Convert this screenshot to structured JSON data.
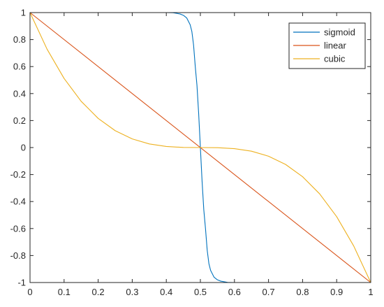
{
  "chart_data": {
    "type": "line",
    "title": "",
    "xlabel": "",
    "ylabel": "",
    "xlim": [
      0,
      1
    ],
    "ylim": [
      -1,
      1
    ],
    "grid": false,
    "legend_position": "top-right",
    "xticks": [
      0,
      0.1,
      0.2,
      0.3,
      0.4,
      0.5,
      0.6,
      0.7,
      0.8,
      0.9,
      1
    ],
    "xtick_labels": [
      "0",
      "0.1",
      "0.2",
      "0.3",
      "0.4",
      "0.5",
      "0.6",
      "0.7",
      "0.8",
      "0.9",
      "1"
    ],
    "yticks": [
      -1,
      -0.8,
      -0.6,
      -0.4,
      -0.2,
      0,
      0.2,
      0.4,
      0.6,
      0.8,
      1
    ],
    "ytick_labels": [
      "-1",
      "-0.8",
      "-0.6",
      "-0.4",
      "-0.2",
      "0",
      "0.2",
      "0.4",
      "0.6",
      "0.8",
      "1"
    ],
    "series": [
      {
        "name": "sigmoid",
        "color": "#0072BD",
        "x": [
          0,
          0.4,
          0.42,
          0.44,
          0.45,
          0.46,
          0.47,
          0.475,
          0.48,
          0.485,
          0.49,
          0.495,
          0.5,
          0.505,
          0.51,
          0.515,
          0.52,
          0.525,
          0.53,
          0.54,
          0.55,
          0.56,
          0.58,
          0.6,
          1
        ],
        "y": [
          1,
          1,
          0.999,
          0.99,
          0.98,
          0.96,
          0.91,
          0.86,
          0.76,
          0.6,
          0.46,
          0.25,
          0,
          -0.25,
          -0.46,
          -0.6,
          -0.76,
          -0.86,
          -0.91,
          -0.96,
          -0.98,
          -0.99,
          -0.999,
          -1,
          -1
        ]
      },
      {
        "name": "linear",
        "color": "#D95319",
        "x": [
          0,
          1
        ],
        "y": [
          1,
          -1
        ]
      },
      {
        "name": "cubic",
        "color": "#EDB120",
        "x": [
          0,
          0.05,
          0.1,
          0.15,
          0.2,
          0.25,
          0.3,
          0.35,
          0.4,
          0.45,
          0.5,
          0.55,
          0.6,
          0.65,
          0.7,
          0.75,
          0.8,
          0.85,
          0.9,
          0.95,
          1
        ],
        "y": [
          1,
          0.729,
          0.512,
          0.343,
          0.216,
          0.125,
          0.064,
          0.027,
          0.008,
          0.001,
          0,
          -0.001,
          -0.008,
          -0.027,
          -0.064,
          -0.125,
          -0.216,
          -0.343,
          -0.512,
          -0.729,
          -1
        ]
      }
    ]
  }
}
